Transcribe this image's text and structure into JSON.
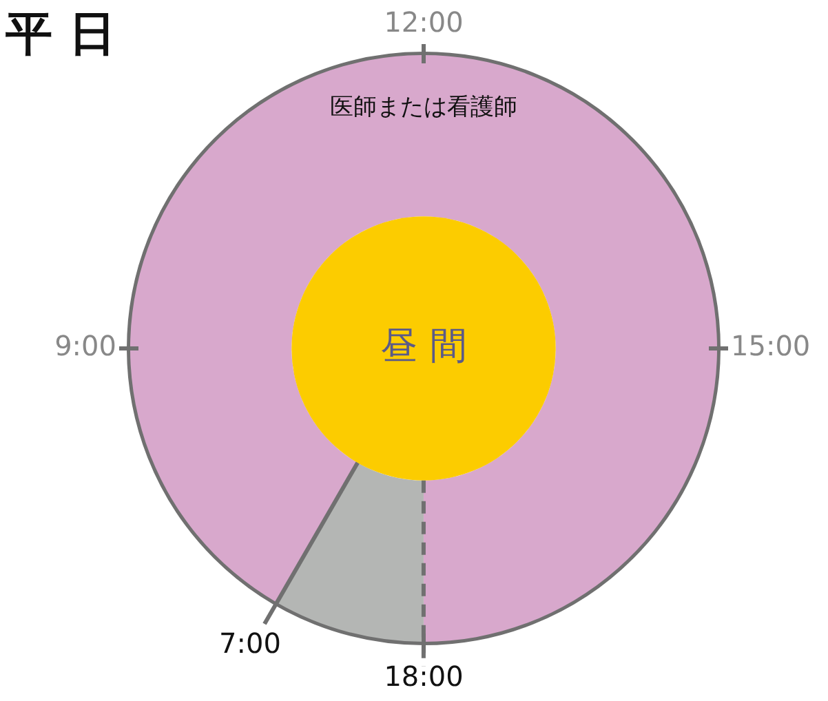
{
  "chart_data": {
    "type": "donut",
    "title": "平 日",
    "categories": [
      "医師または看護師",
      null
    ],
    "values": [
      91.67,
      8.33
    ],
    "colors": [
      "#d8a8cc",
      "#b4b6b4"
    ],
    "annotations": [
      "昼 間",
      "12:00",
      "15:00",
      "18:00",
      "9:00",
      "7:00"
    ],
    "legend": false
  }
}
